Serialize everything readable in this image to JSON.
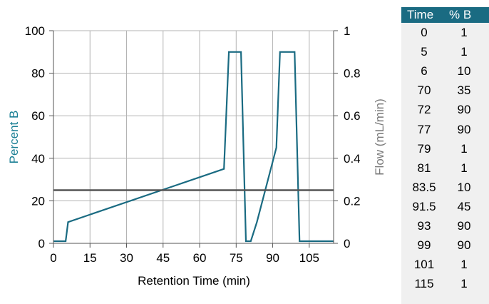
{
  "chart_data": {
    "type": "line",
    "xlabel": "Retention Time (min)",
    "ylabel": "Percent B",
    "y2label": "Flow (mL/min)",
    "xlim": [
      0,
      115
    ],
    "ylim": [
      0,
      100
    ],
    "y2lim": [
      0,
      1
    ],
    "x_ticks": [
      0,
      15,
      30,
      45,
      60,
      75,
      90,
      105
    ],
    "y_ticks": [
      0,
      20,
      40,
      60,
      80,
      100
    ],
    "y2_ticks": [
      0,
      0.2,
      0.4,
      0.6,
      0.8,
      1
    ],
    "y2_tick_labels": [
      "0",
      "0.2",
      "0.4",
      "0.6",
      "0.8",
      "1"
    ],
    "grid": true,
    "series": [
      {
        "axis": "left",
        "color": "#1a6b82",
        "x": [
          0,
          5,
          6,
          70,
          72,
          77,
          79,
          81,
          83.5,
          91.5,
          93,
          99,
          101,
          115
        ],
        "y": [
          1,
          1,
          10,
          35,
          90,
          90,
          1,
          1,
          10,
          45,
          90,
          90,
          1,
          1
        ]
      },
      {
        "axis": "right",
        "color": "#555555",
        "x": [
          0,
          115
        ],
        "y": [
          0.25,
          0.25
        ]
      }
    ]
  },
  "table": {
    "headers": [
      "Time",
      "% B"
    ],
    "rows": [
      [
        "0",
        "1"
      ],
      [
        "5",
        "1"
      ],
      [
        "6",
        "10"
      ],
      [
        "70",
        "35"
      ],
      [
        "72",
        "90"
      ],
      [
        "77",
        "90"
      ],
      [
        "79",
        "1"
      ],
      [
        "81",
        "1"
      ],
      [
        "83.5",
        "10"
      ],
      [
        "91.5",
        "45"
      ],
      [
        "93",
        "90"
      ],
      [
        "99",
        "90"
      ],
      [
        "101",
        "1"
      ],
      [
        "115",
        "1"
      ]
    ],
    "header_color": "#1a6b82",
    "body_color": "#f0f0f0"
  }
}
